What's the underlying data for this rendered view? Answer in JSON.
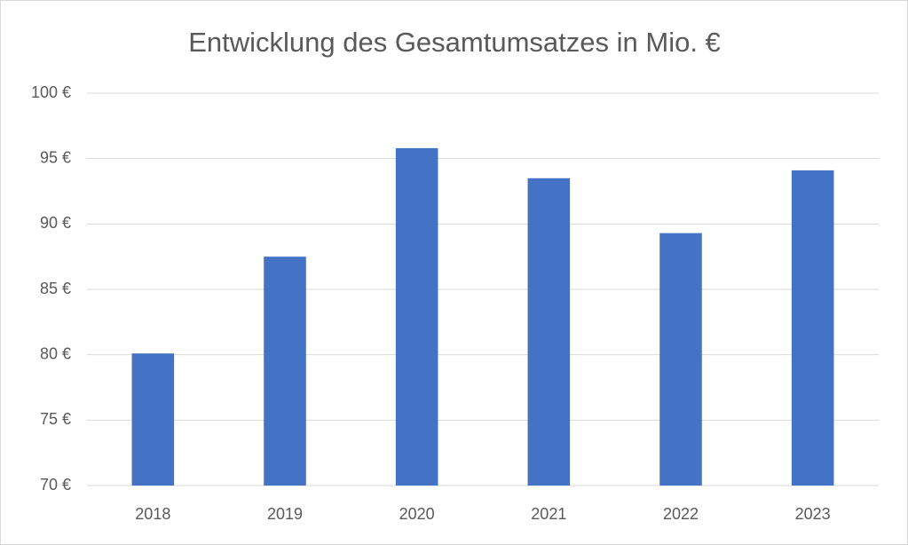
{
  "chart_data": {
    "type": "bar",
    "title": "Entwicklung des Gesamtumsatzes in Mio. €",
    "categories": [
      "2018",
      "2019",
      "2020",
      "2021",
      "2022",
      "2023"
    ],
    "values": [
      80.1,
      87.5,
      95.8,
      93.5,
      89.3,
      94.1
    ],
    "color": "#4472c4",
    "ylim": [
      70,
      100
    ],
    "yticks": [
      {
        "value": 70,
        "label": "70 €"
      },
      {
        "value": 75,
        "label": "75 €"
      },
      {
        "value": 80,
        "label": "80 €"
      },
      {
        "value": 85,
        "label": "85 €"
      },
      {
        "value": 90,
        "label": "90 €"
      },
      {
        "value": 95,
        "label": "95 €"
      },
      {
        "value": 100,
        "label": "100 €"
      }
    ],
    "grid": true
  }
}
